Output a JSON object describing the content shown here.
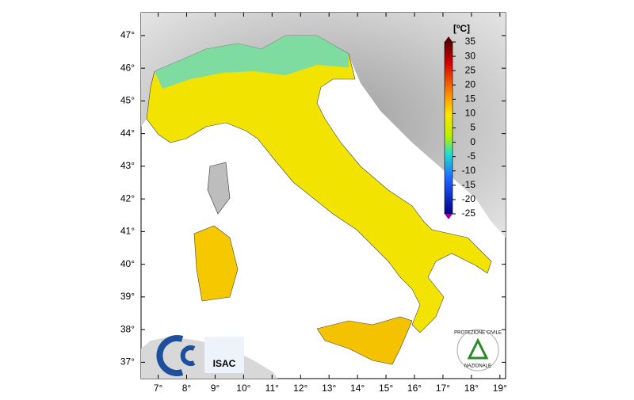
{
  "map": {
    "lonlim": [
      6.4,
      19.2
    ],
    "latlim": [
      36.5,
      47.7
    ],
    "lon_ticks": [
      {
        "value": 7,
        "label": "7°"
      },
      {
        "value": 8,
        "label": "8°"
      },
      {
        "value": 9,
        "label": "9°"
      },
      {
        "value": 10,
        "label": "10°"
      },
      {
        "value": 11,
        "label": "11°"
      },
      {
        "value": 12,
        "label": "12°"
      },
      {
        "value": 13,
        "label": "13°"
      },
      {
        "value": 14,
        "label": "14°"
      },
      {
        "value": 15,
        "label": "15°"
      },
      {
        "value": 16,
        "label": "16°"
      },
      {
        "value": 17,
        "label": "17°"
      },
      {
        "value": 18,
        "label": "18°"
      },
      {
        "value": 19,
        "label": "19°"
      }
    ],
    "lat_ticks": [
      {
        "value": 37,
        "label": "37°"
      },
      {
        "value": 38,
        "label": "38°"
      },
      {
        "value": 39,
        "label": "39°"
      },
      {
        "value": 40,
        "label": "40°"
      },
      {
        "value": 41,
        "label": "41°"
      },
      {
        "value": 42,
        "label": "42°"
      },
      {
        "value": 43,
        "label": "43°"
      },
      {
        "value": 44,
        "label": "44°"
      },
      {
        "value": 45,
        "label": "45°"
      },
      {
        "value": 46,
        "label": "46°"
      },
      {
        "value": 47,
        "label": "47°"
      }
    ]
  },
  "colorbar": {
    "unit": "[ºC]",
    "range": [
      -25,
      35
    ],
    "ticks": [
      35,
      30,
      25,
      20,
      15,
      10,
      5,
      0,
      -5,
      -10,
      -15,
      -20,
      -25
    ]
  },
  "logos": {
    "isac": "ISAC",
    "protezione_civile": "PROTEZIONE CIVILE",
    "nazionale": "NAZIONALE"
  }
}
